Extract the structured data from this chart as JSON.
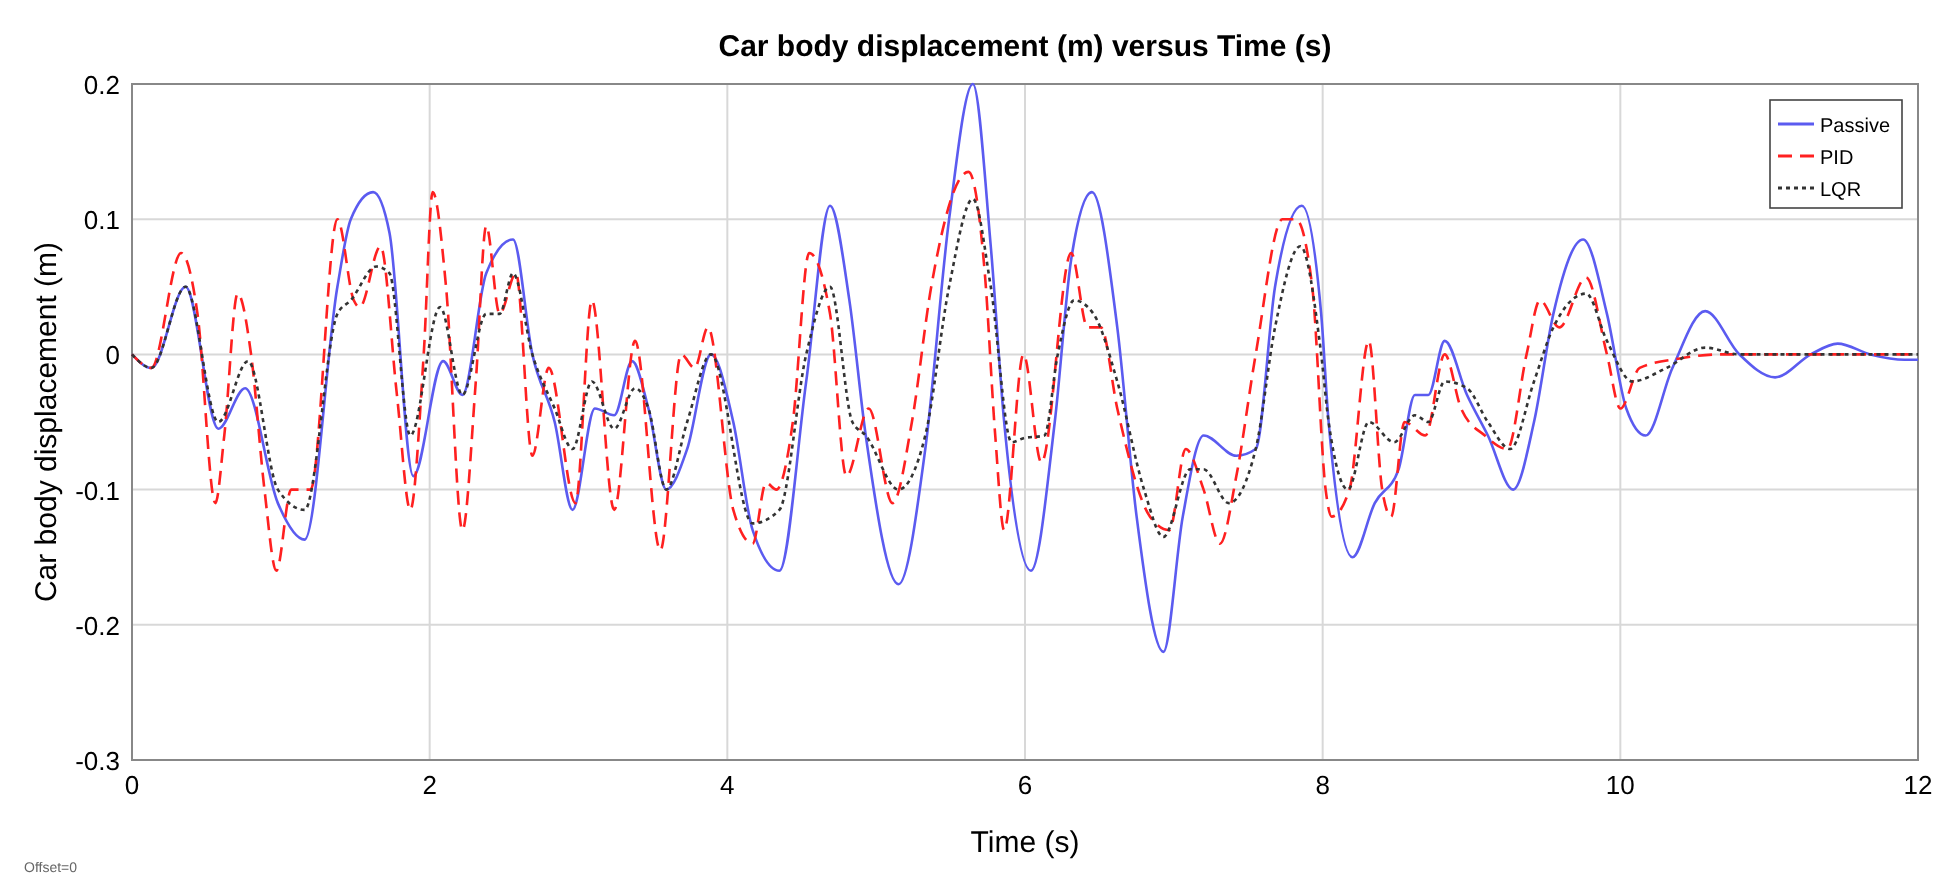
{
  "chart_data": {
    "type": "line",
    "title": "Car body displacement (m) versus Time (s)",
    "xlabel": "Time (s)",
    "ylabel": "Car body displacement (m)",
    "xlim": [
      0,
      12
    ],
    "xticks": [
      0,
      2,
      4,
      6,
      8,
      10,
      12
    ],
    "ylim": [
      -0.3,
      0.2
    ],
    "yticks": [
      -0.3,
      -0.2,
      -0.1,
      0,
      0.1,
      0.2
    ],
    "grid": true,
    "legend": "top right",
    "annotations": [
      "Offset=0"
    ],
    "series": [
      {
        "name": "Passive",
        "color": "#5b5bf0",
        "line_style": "solid",
        "x": [
          0,
          0.13,
          0.36,
          0.58,
          0.76,
          0.98,
          1.16,
          1.38,
          1.47,
          1.62,
          1.73,
          1.89,
          2.09,
          2.22,
          2.38,
          2.56,
          2.69,
          2.84,
          2.96,
          3.11,
          3.24,
          3.36,
          3.47,
          3.59,
          3.73,
          3.89,
          4.04,
          4.17,
          4.35,
          4.53,
          4.69,
          4.82,
          4.93,
          5.15,
          5.33,
          5.49,
          5.65,
          5.77,
          5.86,
          6.04,
          6.2,
          6.31,
          6.45,
          6.62,
          6.75,
          6.93,
          7.06,
          7.2,
          7.42,
          7.55,
          7.68,
          7.86,
          7.99,
          8.04,
          8.2,
          8.35,
          8.51,
          8.62,
          8.71,
          8.82,
          8.97,
          9.11,
          9.28,
          9.42,
          9.55,
          9.75,
          9.91,
          10.04,
          10.17,
          10.35,
          10.57,
          10.8,
          11.04,
          11.28,
          11.46,
          11.68,
          11.91,
          12
        ],
        "values": [
          0,
          -0.01,
          0.05,
          -0.055,
          -0.025,
          -0.11,
          -0.137,
          0.05,
          0.1,
          0.12,
          0.09,
          -0.09,
          -0.005,
          -0.03,
          0.06,
          0.085,
          0,
          -0.05,
          -0.115,
          -0.04,
          -0.045,
          -0.005,
          -0.04,
          -0.1,
          -0.07,
          0,
          -0.05,
          -0.13,
          -0.16,
          -0.02,
          0.11,
          0.04,
          -0.06,
          -0.17,
          -0.07,
          0.1,
          0.2,
          0.08,
          -0.05,
          -0.16,
          -0.05,
          0.07,
          0.12,
          0.02,
          -0.12,
          -0.22,
          -0.12,
          -0.06,
          -0.075,
          -0.07,
          0.05,
          0.11,
          0.03,
          -0.05,
          -0.15,
          -0.11,
          -0.085,
          -0.03,
          -0.03,
          0.01,
          -0.03,
          -0.06,
          -0.1,
          -0.05,
          0.03,
          0.085,
          0.03,
          -0.04,
          -0.06,
          -0.01,
          0.032,
          0,
          -0.017,
          0,
          0.008,
          0,
          -0.004,
          -0.004
        ]
      },
      {
        "name": "PID",
        "color": "#ff2020",
        "line_style": "dashed",
        "x": [
          0,
          0.13,
          0.33,
          0.44,
          0.56,
          0.62,
          0.71,
          0.8,
          0.89,
          0.97,
          1.07,
          1.2,
          1.38,
          1.49,
          1.53,
          1.67,
          1.78,
          1.87,
          1.96,
          2.02,
          2.11,
          2.22,
          2.31,
          2.38,
          2.47,
          2.58,
          2.69,
          2.8,
          2.98,
          3.09,
          3.24,
          3.38,
          3.55,
          3.69,
          3.78,
          3.87,
          4.04,
          4.17,
          4.26,
          4.33,
          4.44,
          4.55,
          4.69,
          4.8,
          4.95,
          5.11,
          5.24,
          5.37,
          5.62,
          5.73,
          5.8,
          5.86,
          5.99,
          6.11,
          6.31,
          6.42,
          6.51,
          6.62,
          6.84,
          6.97,
          7.08,
          7.2,
          7.31,
          7.42,
          7.55,
          7.73,
          7.82,
          7.93,
          8.02,
          8.06,
          8.18,
          8.31,
          8.4,
          8.46,
          8.55,
          8.69,
          8.82,
          8.93,
          9.09,
          9.24,
          9.37,
          9.46,
          9.59,
          9.77,
          9.91,
          10,
          10.13,
          10.4,
          10.67,
          12
        ],
        "values": [
          0,
          -0.01,
          0.075,
          0.03,
          -0.11,
          -0.06,
          0.045,
          0,
          -0.1,
          -0.16,
          -0.1,
          -0.1,
          0.1,
          0.04,
          0.035,
          0.08,
          -0.03,
          -0.115,
          0,
          0.12,
          0.05,
          -0.13,
          -0.02,
          0.095,
          0.03,
          0.06,
          -0.075,
          -0.01,
          -0.11,
          0.04,
          -0.115,
          0.01,
          -0.145,
          0,
          -0.01,
          0.02,
          -0.115,
          -0.14,
          -0.095,
          -0.1,
          -0.05,
          0.075,
          0.03,
          -0.09,
          -0.04,
          -0.11,
          -0.05,
          0.05,
          0.135,
          0.06,
          -0.06,
          -0.13,
          0,
          -0.08,
          0.075,
          0.02,
          0.02,
          -0.04,
          -0.12,
          -0.13,
          -0.07,
          -0.1,
          -0.14,
          -0.09,
          0,
          0.1,
          0.1,
          0.05,
          -0.1,
          -0.12,
          -0.1,
          0.01,
          -0.1,
          -0.12,
          -0.05,
          -0.06,
          0,
          -0.04,
          -0.06,
          -0.07,
          0,
          0.04,
          0.02,
          0.057,
          0,
          -0.04,
          -0.01,
          -0.003,
          0,
          0
        ]
      },
      {
        "name": "LQR",
        "color": "#333333",
        "line_style": "dotted",
        "x": [
          0,
          0.13,
          0.36,
          0.58,
          0.78,
          0.98,
          1.16,
          1.38,
          1.47,
          1.64,
          1.73,
          1.87,
          2.07,
          2.22,
          2.38,
          2.47,
          2.56,
          2.69,
          2.84,
          2.96,
          3.09,
          3.24,
          3.38,
          3.47,
          3.59,
          3.73,
          3.89,
          4.17,
          4.35,
          4.53,
          4.69,
          4.84,
          4.93,
          5.15,
          5.33,
          5.49,
          5.65,
          5.77,
          5.91,
          5.99,
          6.13,
          6.22,
          6.33,
          6.46,
          6.62,
          6.8,
          6.93,
          7.11,
          7.2,
          7.37,
          7.55,
          7.68,
          7.85,
          7.99,
          8.04,
          8.17,
          8.31,
          8.48,
          8.62,
          8.71,
          8.82,
          8.97,
          9.11,
          9.26,
          9.42,
          9.55,
          9.77,
          9.91,
          10.08,
          10.31,
          10.57,
          10.8,
          12
        ],
        "values": [
          0,
          -0.01,
          0.05,
          -0.05,
          -0.005,
          -0.1,
          -0.115,
          0.03,
          0.04,
          0.065,
          0.06,
          -0.06,
          0.035,
          -0.03,
          0.03,
          0.03,
          0.06,
          0,
          -0.04,
          -0.07,
          -0.02,
          -0.055,
          -0.025,
          -0.04,
          -0.1,
          -0.05,
          0,
          -0.125,
          -0.115,
          0,
          0.05,
          -0.05,
          -0.06,
          -0.1,
          -0.06,
          0.05,
          0.115,
          0.05,
          -0.065,
          -0.062,
          -0.06,
          0,
          0.04,
          0.03,
          -0.02,
          -0.1,
          -0.135,
          -0.085,
          -0.085,
          -0.11,
          -0.07,
          0.02,
          0.08,
          0,
          -0.05,
          -0.1,
          -0.05,
          -0.065,
          -0.045,
          -0.05,
          -0.02,
          -0.025,
          -0.05,
          -0.07,
          -0.02,
          0.02,
          0.045,
          0.01,
          -0.02,
          -0.01,
          0.005,
          0,
          0
        ]
      }
    ]
  }
}
